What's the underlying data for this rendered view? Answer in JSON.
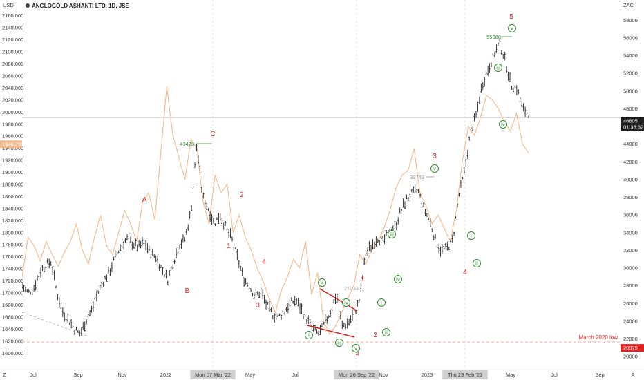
{
  "title": "ANGLOGOLD ASHANTI LTD, 1D, JSE",
  "colors": {
    "price_bars": "#222222",
    "overlay_line": "#f4b98a",
    "wave_red": "#e02020",
    "wave_green": "#2e8b2e",
    "grid_dash": "#cfcfcf",
    "label_bg": "#d0d0d0"
  },
  "chart_data": {
    "type": "line",
    "series": [
      {
        "values": [
          1712,
          1700,
          1708,
          1735,
          1745,
          1752,
          1700,
          1668,
          1655,
          1640,
          1632,
          1655,
          1672,
          1700,
          1720,
          1735,
          1760,
          1778,
          1790,
          1782,
          1776,
          1785,
          1766,
          1760,
          1740,
          1722,
          1752,
          1780,
          1790,
          1835,
          1945,
          1860,
          1840,
          1815,
          1830,
          1808,
          1790,
          1758,
          1725,
          1712,
          1695,
          1702,
          1680,
          1665,
          1660,
          1668,
          1683,
          1688,
          1672,
          1655,
          1640,
          1632,
          1650,
          1670,
          1698,
          1645,
          1650,
          1665,
          1690,
          1765,
          1778,
          1792,
          1785,
          1800,
          1808,
          1835,
          1855,
          1865,
          1870,
          1840,
          1820,
          1788,
          1770,
          1775,
          1788,
          1860,
          1902,
          1965,
          1995,
          2045,
          2070,
          2095,
          2115,
          2085,
          2045,
          2040,
          2005,
          1998
        ]
      },
      {
        "values": [
          29000,
          33500,
          32500,
          30800,
          33000,
          31500,
          30200,
          31800,
          33000,
          35000,
          32000,
          30500,
          33500,
          36000,
          32500,
          31500,
          34000,
          36500,
          35000,
          33000,
          37500,
          38500,
          35500,
          43000,
          50500,
          45000,
          42500,
          40000,
          44500,
          43500,
          37500,
          35000,
          40500,
          38500,
          39500,
          34000,
          36000,
          33500,
          32000,
          30000,
          28500,
          26500,
          25000,
          27500,
          29000,
          31000,
          30000,
          33000,
          27000,
          29500,
          24000,
          22500,
          23500,
          25000,
          26500,
          28000,
          31500,
          30500,
          32000,
          33000,
          34500,
          36500,
          39000,
          40500,
          41000,
          43500,
          38500,
          37000,
          35000,
          36000,
          34500,
          33000,
          36500,
          42000,
          46000,
          45000,
          47000,
          49500,
          49000,
          48000,
          46500,
          45500,
          47500,
          44000,
          43000
        ]
      }
    ],
    "price_markers": [
      {
        "label": "43478",
        "value": 1936
      },
      {
        "label": "39743",
        "value": 1810
      },
      {
        "label": "27033",
        "value": 1702
      },
      {
        "label": "55688",
        "value": 2124
      }
    ],
    "waves_red": [
      {
        "label": "A",
        "x": 209,
        "y": 292
      },
      {
        "label": "B",
        "x": 271,
        "y": 424
      },
      {
        "label": "C",
        "x": 308,
        "y": 197
      },
      {
        "label": "1",
        "x": 331,
        "y": 359
      },
      {
        "label": "2",
        "x": 350,
        "y": 285
      },
      {
        "label": "3",
        "x": 373,
        "y": 445
      },
      {
        "label": "4",
        "x": 382,
        "y": 382
      },
      {
        "label": "5",
        "x": 517,
        "y": 514
      },
      {
        "label": "1",
        "x": 525,
        "y": 407
      },
      {
        "label": "2",
        "x": 543,
        "y": 488
      },
      {
        "label": "3",
        "x": 629,
        "y": 229
      },
      {
        "label": "4",
        "x": 673,
        "y": 397
      },
      {
        "label": "5",
        "x": 740,
        "y": 27
      }
    ],
    "waves_green": [
      {
        "label": "i",
        "x": 447,
        "y": 485
      },
      {
        "label": "ii",
        "x": 466,
        "y": 409
      },
      {
        "label": "iii",
        "x": 491,
        "y": 496
      },
      {
        "label": "iv",
        "x": 501,
        "y": 438
      },
      {
        "label": "v",
        "x": 515,
        "y": 504
      },
      {
        "label": "i",
        "x": 552,
        "y": 438
      },
      {
        "label": "ii",
        "x": 559,
        "y": 481
      },
      {
        "label": "iii",
        "x": 567,
        "y": 339
      },
      {
        "label": "iv",
        "x": 576,
        "y": 404
      },
      {
        "label": "v",
        "x": 629,
        "y": 244
      },
      {
        "label": "i",
        "x": 682,
        "y": 341
      },
      {
        "label": "ii",
        "x": 690,
        "y": 381
      },
      {
        "label": "iii",
        "x": 721,
        "y": 98
      },
      {
        "label": "iv",
        "x": 728,
        "y": 180
      },
      {
        "label": "v",
        "x": 741,
        "y": 41
      }
    ],
    "x_ticks": [
      "Jul",
      "Sep",
      "Nov",
      "2022",
      "Mon 07 Mar '22",
      "May",
      "Jul",
      "Se",
      "Mon 26 Sep '22",
      "Nov",
      "2023",
      "Thu 23 Feb '23",
      "May",
      "Jul",
      "Sep",
      "A"
    ],
    "left_axis": {
      "label": "USD",
      "ticks": [
        1600,
        1620,
        1640,
        1660,
        1680,
        1700,
        1720,
        1740,
        1760,
        1780,
        1800,
        1820,
        1840,
        1860,
        1880,
        1900,
        1920,
        1940,
        1960,
        1980,
        2000,
        2020,
        2040,
        2060,
        2080,
        2100,
        2120,
        2140,
        2160
      ],
      "ylim": [
        1590,
        2170
      ],
      "current_label": "1946.735",
      "current_value": 1946.735
    },
    "right_axis": {
      "label": "ZAC",
      "ticks": [
        20000,
        22000,
        24000,
        26000,
        28000,
        30000,
        32000,
        34000,
        36000,
        38000,
        40000,
        42000,
        44000,
        46000,
        48000,
        50000,
        52000,
        54000,
        56000,
        58000
      ],
      "ylim": [
        19700,
        59200
      ],
      "price_label": "46605",
      "time_label": "01:38:32",
      "price_value": 46605,
      "low_label": "20979",
      "low_value": 20979
    },
    "annotation": "March 2020 low",
    "corner_labels": {
      "left": "Z",
      "right": "A"
    }
  }
}
